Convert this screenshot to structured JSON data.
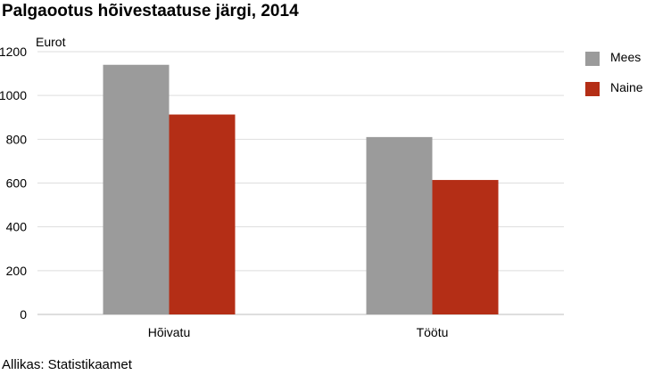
{
  "chart_data": {
    "type": "bar",
    "title": "Palgaootus hõivestaatuse järgi, 2014",
    "ylabel": "Eurot",
    "xlabel": "",
    "categories": [
      "Hõivatu",
      "Töötu"
    ],
    "series": [
      {
        "name": "Mees",
        "color": "#9b9b9b",
        "values": [
          1140,
          810
        ]
      },
      {
        "name": "Naine",
        "color": "#b42e16",
        "values": [
          913,
          614
        ]
      }
    ],
    "ylim": [
      0,
      1200
    ],
    "yticks": [
      0,
      200,
      400,
      600,
      800,
      1000,
      1200
    ],
    "grid": true,
    "legend": "top-right",
    "source": "Allikas: Statistikaamet"
  }
}
